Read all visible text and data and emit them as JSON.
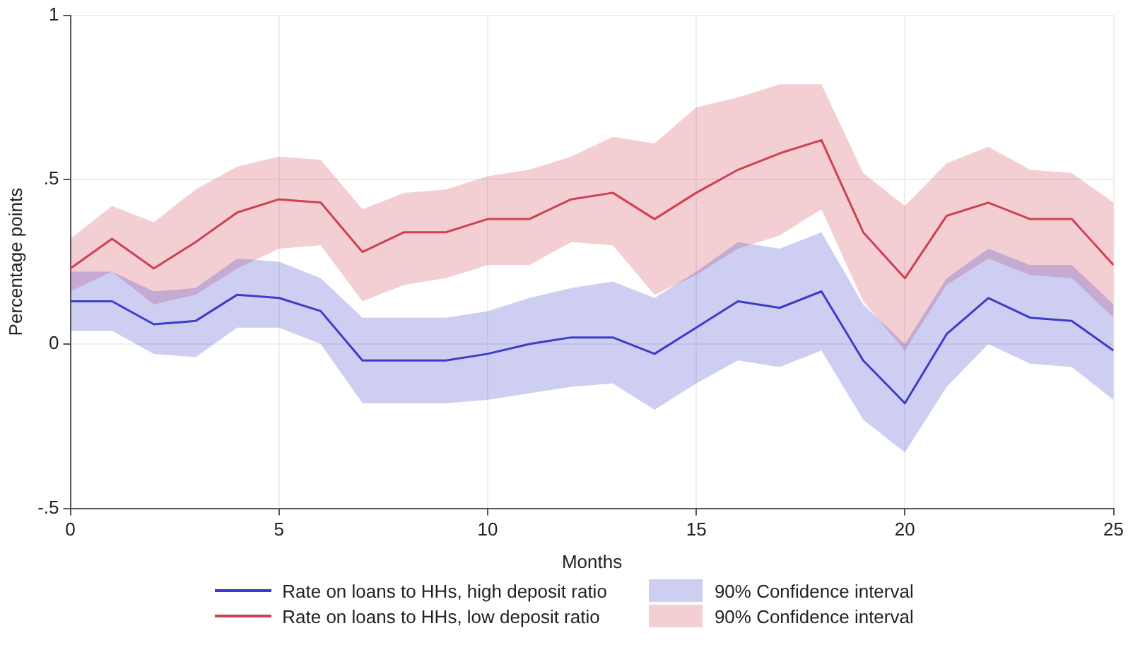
{
  "chart_data": {
    "type": "line",
    "xlabel": "Months",
    "ylabel": "Percentage points",
    "x": [
      0,
      1,
      2,
      3,
      4,
      5,
      6,
      7,
      8,
      9,
      10,
      11,
      12,
      13,
      14,
      15,
      16,
      17,
      18,
      19,
      20,
      21,
      22,
      23,
      24,
      25
    ],
    "xlim": [
      0,
      25
    ],
    "xticks": [
      0,
      5,
      10,
      15,
      20,
      25
    ],
    "ylim": [
      -0.5,
      1
    ],
    "yticks": [
      {
        "value": -0.5,
        "label": "-.5"
      },
      0,
      {
        "value": 0.5,
        "label": ".5"
      },
      1
    ],
    "grid": true,
    "legend": "bottom",
    "marker": "none",
    "line_style": "solid",
    "annotations": [
      "90% Confidence interval",
      "90% Confidence interval"
    ],
    "series": [
      {
        "name": "Rate on loans to HHs, high deposit ratio",
        "color": "#3c3ccc",
        "values": [
          0.13,
          0.13,
          0.06,
          0.07,
          0.15,
          0.14,
          0.1,
          -0.05,
          -0.05,
          -0.05,
          -0.03,
          0,
          0.02,
          0.02,
          -0.03,
          0.05,
          0.13,
          0.11,
          0.16,
          -0.05,
          -0.18,
          0.03,
          0.14,
          0.08,
          0.07,
          -0.02
        ],
        "lower": [
          0.04,
          0.04,
          -0.03,
          -0.04,
          0.05,
          0.05,
          0,
          -0.18,
          -0.18,
          -0.18,
          -0.17,
          -0.15,
          -0.13,
          -0.12,
          -0.2,
          -0.12,
          -0.05,
          -0.07,
          -0.02,
          -0.23,
          -0.33,
          -0.13,
          0,
          -0.06,
          -0.07,
          -0.17
        ],
        "upper": [
          0.22,
          0.22,
          0.16,
          0.17,
          0.26,
          0.25,
          0.2,
          0.08,
          0.08,
          0.08,
          0.1,
          0.14,
          0.17,
          0.19,
          0.14,
          0.22,
          0.31,
          0.29,
          0.34,
          0.12,
          0,
          0.2,
          0.29,
          0.24,
          0.24,
          0.12
        ]
      },
      {
        "name": "Rate on loans to HHs, low deposit ratio",
        "color": "#d04050",
        "values": [
          0.23,
          0.32,
          0.23,
          0.31,
          0.4,
          0.44,
          0.43,
          0.28,
          0.34,
          0.34,
          0.38,
          0.38,
          0.44,
          0.46,
          0.38,
          0.46,
          0.53,
          0.58,
          0.62,
          0.34,
          0.2,
          0.39,
          0.43,
          0.38,
          0.38,
          0.24
        ],
        "lower": [
          0.16,
          0.22,
          0.12,
          0.15,
          0.23,
          0.29,
          0.3,
          0.13,
          0.18,
          0.2,
          0.24,
          0.24,
          0.31,
          0.3,
          0.15,
          0.21,
          0.29,
          0.33,
          0.41,
          0.13,
          -0.02,
          0.18,
          0.26,
          0.21,
          0.2,
          0.08
        ],
        "upper": [
          0.32,
          0.42,
          0.37,
          0.47,
          0.54,
          0.57,
          0.56,
          0.41,
          0.46,
          0.47,
          0.51,
          0.53,
          0.57,
          0.63,
          0.61,
          0.72,
          0.75,
          0.79,
          0.79,
          0.52,
          0.42,
          0.55,
          0.6,
          0.53,
          0.52,
          0.43
        ]
      }
    ]
  }
}
